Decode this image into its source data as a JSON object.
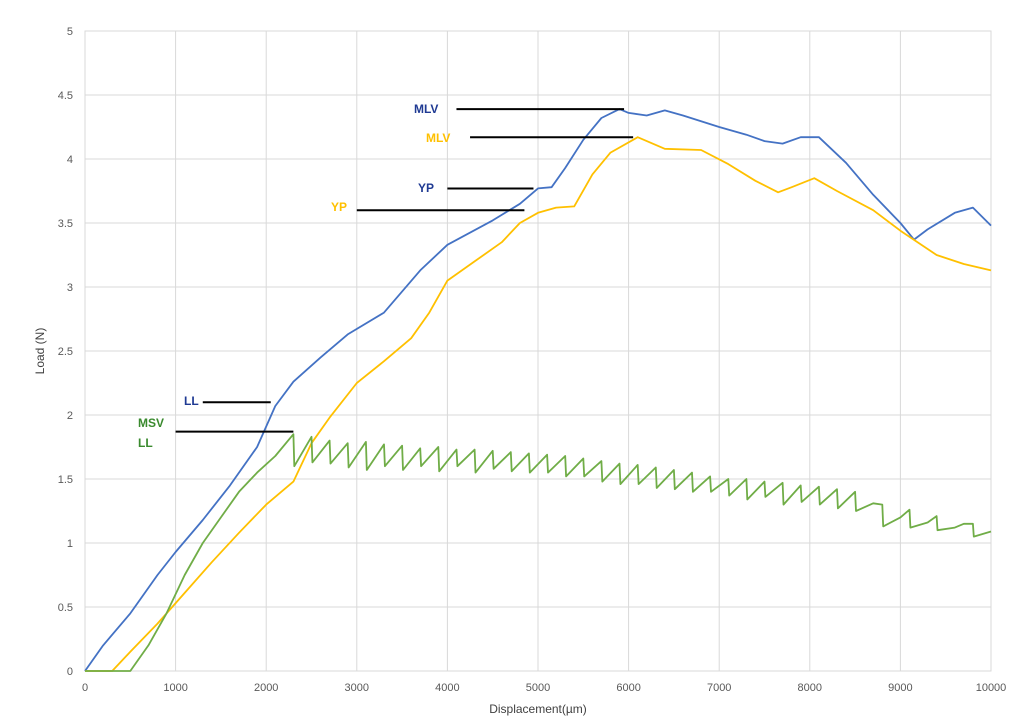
{
  "chart_data": {
    "type": "line",
    "xlabel": "Displacement(µm)",
    "ylabel": "Load (N)",
    "xlim": [
      0,
      10000
    ],
    "ylim": [
      0,
      5
    ],
    "x_ticks": [
      0,
      1000,
      2000,
      3000,
      4000,
      5000,
      6000,
      7000,
      8000,
      9000,
      10000
    ],
    "y_ticks": [
      0,
      0.5,
      1,
      1.5,
      2,
      2.5,
      3,
      3.5,
      4,
      4.5,
      5
    ],
    "y_tick_labels": [
      "0",
      "0.5",
      "1",
      "1.5",
      "2",
      "2.5",
      "3",
      "3.5",
      "4",
      "4.5",
      "5"
    ],
    "grid": true,
    "series": [
      {
        "color": "#4472C4",
        "points": [
          [
            0,
            0
          ],
          [
            200,
            0.2
          ],
          [
            500,
            0.45
          ],
          [
            800,
            0.75
          ],
          [
            1000,
            0.93
          ],
          [
            1300,
            1.18
          ],
          [
            1600,
            1.45
          ],
          [
            1900,
            1.75
          ],
          [
            2100,
            2.07
          ],
          [
            2300,
            2.26
          ],
          [
            2600,
            2.45
          ],
          [
            2900,
            2.63
          ],
          [
            3300,
            2.8
          ],
          [
            3700,
            3.13
          ],
          [
            4000,
            3.33
          ],
          [
            4500,
            3.52
          ],
          [
            4800,
            3.65
          ],
          [
            5000,
            3.77
          ],
          [
            5150,
            3.78
          ],
          [
            5300,
            3.93
          ],
          [
            5500,
            4.15
          ],
          [
            5700,
            4.32
          ],
          [
            5900,
            4.39
          ],
          [
            6000,
            4.36
          ],
          [
            6200,
            4.34
          ],
          [
            6400,
            4.38
          ],
          [
            6600,
            4.34
          ],
          [
            7000,
            4.25
          ],
          [
            7300,
            4.19
          ],
          [
            7500,
            4.14
          ],
          [
            7700,
            4.12
          ],
          [
            7900,
            4.17
          ],
          [
            8100,
            4.17
          ],
          [
            8400,
            3.97
          ],
          [
            8700,
            3.72
          ],
          [
            9000,
            3.5
          ],
          [
            9150,
            3.37
          ],
          [
            9300,
            3.45
          ],
          [
            9600,
            3.58
          ],
          [
            9800,
            3.62
          ],
          [
            10000,
            3.48
          ]
        ]
      },
      {
        "color": "#FFC000",
        "points": [
          [
            0,
            0
          ],
          [
            300,
            0
          ],
          [
            500,
            0.15
          ],
          [
            800,
            0.37
          ],
          [
            1100,
            0.61
          ],
          [
            1400,
            0.85
          ],
          [
            1700,
            1.08
          ],
          [
            2000,
            1.3
          ],
          [
            2300,
            1.48
          ],
          [
            2500,
            1.78
          ],
          [
            2700,
            1.98
          ],
          [
            3000,
            2.25
          ],
          [
            3300,
            2.42
          ],
          [
            3600,
            2.6
          ],
          [
            3800,
            2.8
          ],
          [
            4000,
            3.05
          ],
          [
            4300,
            3.2
          ],
          [
            4600,
            3.35
          ],
          [
            4800,
            3.5
          ],
          [
            5000,
            3.58
          ],
          [
            5200,
            3.62
          ],
          [
            5400,
            3.63
          ],
          [
            5600,
            3.88
          ],
          [
            5800,
            4.05
          ],
          [
            6100,
            4.17
          ],
          [
            6400,
            4.08
          ],
          [
            6800,
            4.07
          ],
          [
            7100,
            3.96
          ],
          [
            7400,
            3.83
          ],
          [
            7650,
            3.74
          ],
          [
            7800,
            3.78
          ],
          [
            8050,
            3.85
          ],
          [
            8300,
            3.75
          ],
          [
            8700,
            3.6
          ],
          [
            9000,
            3.44
          ],
          [
            9400,
            3.25
          ],
          [
            9700,
            3.18
          ],
          [
            10000,
            3.13
          ]
        ]
      },
      {
        "color": "#70AD47",
        "points": [
          [
            0,
            0
          ],
          [
            500,
            0
          ],
          [
            700,
            0.2
          ],
          [
            900,
            0.45
          ],
          [
            1100,
            0.75
          ],
          [
            1300,
            1.0
          ],
          [
            1500,
            1.2
          ],
          [
            1700,
            1.4
          ],
          [
            1900,
            1.55
          ],
          [
            2100,
            1.68
          ],
          [
            2300,
            1.85
          ],
          [
            2310,
            1.6
          ],
          [
            2500,
            1.83
          ],
          [
            2510,
            1.63
          ],
          [
            2700,
            1.8
          ],
          [
            2710,
            1.62
          ],
          [
            2900,
            1.78
          ],
          [
            2910,
            1.59
          ],
          [
            3100,
            1.79
          ],
          [
            3110,
            1.57
          ],
          [
            3300,
            1.77
          ],
          [
            3310,
            1.6
          ],
          [
            3500,
            1.76
          ],
          [
            3510,
            1.57
          ],
          [
            3700,
            1.74
          ],
          [
            3710,
            1.6
          ],
          [
            3900,
            1.75
          ],
          [
            3910,
            1.56
          ],
          [
            4100,
            1.73
          ],
          [
            4110,
            1.6
          ],
          [
            4300,
            1.73
          ],
          [
            4310,
            1.55
          ],
          [
            4500,
            1.72
          ],
          [
            4510,
            1.58
          ],
          [
            4700,
            1.71
          ],
          [
            4710,
            1.56
          ],
          [
            4900,
            1.7
          ],
          [
            4910,
            1.55
          ],
          [
            5100,
            1.69
          ],
          [
            5110,
            1.55
          ],
          [
            5300,
            1.68
          ],
          [
            5310,
            1.52
          ],
          [
            5500,
            1.66
          ],
          [
            5510,
            1.52
          ],
          [
            5700,
            1.64
          ],
          [
            5710,
            1.48
          ],
          [
            5900,
            1.62
          ],
          [
            5910,
            1.46
          ],
          [
            6100,
            1.61
          ],
          [
            6110,
            1.46
          ],
          [
            6300,
            1.59
          ],
          [
            6310,
            1.43
          ],
          [
            6500,
            1.57
          ],
          [
            6510,
            1.42
          ],
          [
            6700,
            1.55
          ],
          [
            6710,
            1.4
          ],
          [
            6900,
            1.52
          ],
          [
            6910,
            1.4
          ],
          [
            7100,
            1.5
          ],
          [
            7110,
            1.37
          ],
          [
            7300,
            1.5
          ],
          [
            7310,
            1.34
          ],
          [
            7500,
            1.48
          ],
          [
            7510,
            1.36
          ],
          [
            7700,
            1.47
          ],
          [
            7710,
            1.3
          ],
          [
            7900,
            1.45
          ],
          [
            7910,
            1.32
          ],
          [
            8100,
            1.44
          ],
          [
            8110,
            1.3
          ],
          [
            8300,
            1.42
          ],
          [
            8310,
            1.27
          ],
          [
            8500,
            1.4
          ],
          [
            8510,
            1.25
          ],
          [
            8700,
            1.31
          ],
          [
            8800,
            1.3
          ],
          [
            8810,
            1.13
          ],
          [
            9000,
            1.2
          ],
          [
            9100,
            1.26
          ],
          [
            9110,
            1.12
          ],
          [
            9300,
            1.16
          ],
          [
            9400,
            1.21
          ],
          [
            9410,
            1.1
          ],
          [
            9600,
            1.12
          ],
          [
            9700,
            1.15
          ],
          [
            9800,
            1.15
          ],
          [
            9810,
            1.05
          ],
          [
            10000,
            1.09
          ]
        ]
      }
    ],
    "annotations": [
      {
        "text": "MLV",
        "color": "#1F3A93",
        "line": [
          [
            4100,
            4.39
          ],
          [
            5950,
            4.39
          ]
        ]
      },
      {
        "text": "MLV",
        "color": "#FFC000",
        "line": [
          [
            4250,
            4.17
          ],
          [
            6050,
            4.17
          ]
        ]
      },
      {
        "text": "YP",
        "color": "#1F3A93",
        "line": [
          [
            4000,
            3.77
          ],
          [
            4950,
            3.77
          ]
        ]
      },
      {
        "text": "YP",
        "color": "#FFC000",
        "line": [
          [
            3000,
            3.6
          ],
          [
            4850,
            3.6
          ]
        ]
      },
      {
        "text": "LL",
        "color": "#1F3A93",
        "line": [
          [
            1300,
            2.1
          ],
          [
            2050,
            2.1
          ]
        ]
      },
      {
        "text": "MSV",
        "color": "#3A8A2E",
        "line": [
          [
            1000,
            1.87
          ],
          [
            2300,
            1.87
          ]
        ]
      },
      {
        "text": "LL",
        "color": "#3A8A2E",
        "line": []
      }
    ]
  }
}
